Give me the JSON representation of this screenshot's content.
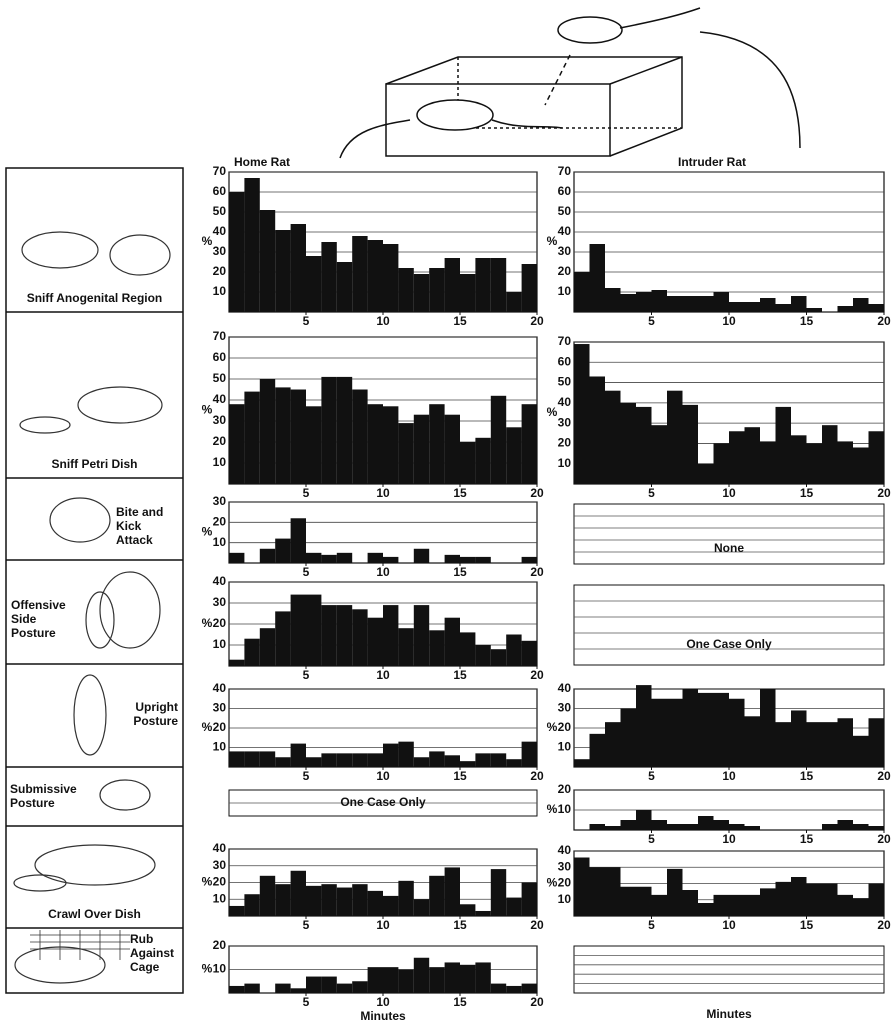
{
  "column_titles": [
    "Home Rat",
    "Intruder Rat"
  ],
  "behaviors": [
    "Sniff Anogenital Region",
    "Sniff Petri Dish",
    "Bite and Kick Attack",
    "Offensive Side Posture",
    "Upright Posture",
    "Submissive Posture",
    "Crawl Over Dish",
    "Rub Against Cage"
  ],
  "chart_data": [
    {
      "type": "histogram",
      "ylabel": "%",
      "color": "#111111",
      "grid": true,
      "bins": [
        0,
        1,
        2,
        3,
        4,
        5,
        6,
        7,
        8,
        9,
        10,
        11,
        12,
        13,
        14,
        15,
        16,
        17,
        18,
        19,
        20
      ],
      "values": [
        60,
        67,
        51,
        41,
        44,
        28,
        35,
        25,
        38,
        36,
        34,
        22,
        19,
        22,
        27,
        19,
        27,
        27,
        10,
        24
      ],
      "xlim": [
        0,
        20
      ],
      "xticks": [
        5,
        10,
        15,
        20
      ],
      "ylim": [
        0,
        70
      ],
      "yticks": [
        10,
        20,
        30,
        40,
        50,
        60,
        70
      ]
    },
    {
      "type": "histogram",
      "ylabel": "%",
      "color": "#111111",
      "grid": true,
      "bins": [
        0,
        1,
        2,
        3,
        4,
        5,
        6,
        7,
        8,
        9,
        10,
        11,
        12,
        13,
        14,
        15,
        16,
        17,
        18,
        19,
        20
      ],
      "values": [
        20,
        34,
        12,
        9,
        10,
        11,
        8,
        8,
        8,
        10,
        5,
        5,
        7,
        4,
        8,
        2,
        0,
        3,
        7,
        4
      ],
      "xlim": [
        0,
        20
      ],
      "xticks": [
        5,
        10,
        15,
        20
      ],
      "ylim": [
        0,
        70
      ],
      "yticks": [
        10,
        20,
        30,
        40,
        50,
        60,
        70
      ]
    },
    {
      "type": "histogram",
      "ylabel": "%",
      "color": "#111111",
      "grid": true,
      "bins": [
        0,
        1,
        2,
        3,
        4,
        5,
        6,
        7,
        8,
        9,
        10,
        11,
        12,
        13,
        14,
        15,
        16,
        17,
        18,
        19,
        20
      ],
      "values": [
        38,
        44,
        50,
        46,
        45,
        37,
        51,
        51,
        45,
        38,
        37,
        29,
        33,
        38,
        33,
        20,
        22,
        42,
        27,
        38
      ],
      "xlim": [
        0,
        20
      ],
      "xticks": [
        5,
        10,
        15,
        20
      ],
      "ylim": [
        0,
        70
      ],
      "yticks": [
        10,
        20,
        30,
        40,
        50,
        60,
        70
      ]
    },
    {
      "type": "histogram",
      "ylabel": "%",
      "color": "#111111",
      "grid": true,
      "bins": [
        0,
        1,
        2,
        3,
        4,
        5,
        6,
        7,
        8,
        9,
        10,
        11,
        12,
        13,
        14,
        15,
        16,
        17,
        18,
        19,
        20
      ],
      "values": [
        69,
        53,
        46,
        40,
        38,
        29,
        46,
        39,
        10,
        20,
        26,
        28,
        21,
        38,
        24,
        20,
        29,
        21,
        18,
        26
      ],
      "xlim": [
        0,
        20
      ],
      "xticks": [
        5,
        10,
        15,
        20
      ],
      "ylim": [
        0,
        70
      ],
      "yticks": [
        10,
        20,
        30,
        40,
        50,
        60,
        70
      ]
    },
    {
      "type": "histogram",
      "ylabel": "%",
      "color": "#111111",
      "grid": true,
      "bins": [
        0,
        1,
        2,
        3,
        4,
        5,
        6,
        7,
        8,
        9,
        10,
        11,
        12,
        13,
        14,
        15,
        16,
        17,
        18,
        19,
        20
      ],
      "values": [
        5,
        0,
        7,
        12,
        22,
        5,
        4,
        5,
        0,
        5,
        3,
        0,
        7,
        0,
        4,
        3,
        3,
        0,
        0,
        3
      ],
      "xlim": [
        0,
        20
      ],
      "xticks": [
        5,
        10,
        15,
        20
      ],
      "ylim": [
        0,
        30
      ],
      "yticks": [
        10,
        20,
        30
      ]
    },
    {
      "type": "histogram",
      "annotation": "None"
    },
    {
      "type": "histogram",
      "ylabel": "%",
      "color": "#111111",
      "grid": true,
      "bins": [
        0,
        1,
        2,
        3,
        4,
        5,
        6,
        7,
        8,
        9,
        10,
        11,
        12,
        13,
        14,
        15,
        16,
        17,
        18,
        19,
        20
      ],
      "values": [
        3,
        13,
        18,
        26,
        34,
        34,
        29,
        29,
        27,
        23,
        29,
        18,
        29,
        17,
        23,
        16,
        10,
        8,
        15,
        12
      ],
      "xlim": [
        0,
        20
      ],
      "xticks": [
        5,
        10,
        15,
        20
      ],
      "ylim": [
        0,
        40
      ],
      "yticks": [
        10,
        20,
        30,
        40
      ]
    },
    {
      "type": "histogram",
      "annotation": "One Case Only"
    },
    {
      "type": "histogram",
      "ylabel": "%",
      "color": "#111111",
      "grid": true,
      "bins": [
        0,
        1,
        2,
        3,
        4,
        5,
        6,
        7,
        8,
        9,
        10,
        11,
        12,
        13,
        14,
        15,
        16,
        17,
        18,
        19,
        20
      ],
      "values": [
        8,
        8,
        8,
        5,
        12,
        5,
        7,
        7,
        7,
        7,
        12,
        13,
        5,
        8,
        6,
        3,
        7,
        7,
        4,
        13
      ],
      "xlim": [
        0,
        20
      ],
      "xticks": [
        5,
        10,
        15,
        20
      ],
      "ylim": [
        0,
        40
      ],
      "yticks": [
        10,
        20,
        30,
        40
      ]
    },
    {
      "type": "histogram",
      "ylabel": "%",
      "color": "#111111",
      "grid": true,
      "bins": [
        0,
        1,
        2,
        3,
        4,
        5,
        6,
        7,
        8,
        9,
        10,
        11,
        12,
        13,
        14,
        15,
        16,
        17,
        18,
        19,
        20
      ],
      "values": [
        4,
        17,
        23,
        30,
        42,
        35,
        35,
        40,
        38,
        38,
        35,
        26,
        40,
        23,
        29,
        23,
        23,
        25,
        16,
        25
      ],
      "xlim": [
        0,
        20
      ],
      "xticks": [
        5,
        10,
        15,
        20
      ],
      "ylim": [
        0,
        40
      ],
      "yticks": [
        10,
        20,
        30,
        40
      ]
    },
    {
      "type": "histogram",
      "annotation": "One Case Only"
    },
    {
      "type": "histogram",
      "ylabel": "%",
      "color": "#111111",
      "grid": true,
      "bins": [
        0,
        1,
        2,
        3,
        4,
        5,
        6,
        7,
        8,
        9,
        10,
        11,
        12,
        13,
        14,
        15,
        16,
        17,
        18,
        19,
        20
      ],
      "values": [
        0,
        3,
        2,
        5,
        10,
        5,
        3,
        3,
        7,
        5,
        3,
        2,
        0,
        0,
        0,
        0,
        3,
        5,
        3,
        2
      ],
      "xlim": [
        0,
        20
      ],
      "xticks": [
        5,
        10,
        15,
        20
      ],
      "ylim": [
        0,
        20
      ],
      "yticks": [
        10,
        20
      ]
    },
    {
      "type": "histogram",
      "ylabel": "%",
      "color": "#111111",
      "grid": true,
      "bins": [
        0,
        1,
        2,
        3,
        4,
        5,
        6,
        7,
        8,
        9,
        10,
        11,
        12,
        13,
        14,
        15,
        16,
        17,
        18,
        19,
        20
      ],
      "values": [
        6,
        13,
        24,
        19,
        27,
        18,
        19,
        17,
        19,
        15,
        12,
        21,
        10,
        24,
        29,
        7,
        3,
        28,
        11,
        20
      ],
      "xlim": [
        0,
        20
      ],
      "xticks": [
        5,
        10,
        15,
        20
      ],
      "ylim": [
        0,
        40
      ],
      "yticks": [
        10,
        20,
        30,
        40
      ]
    },
    {
      "type": "histogram",
      "ylabel": "%",
      "color": "#111111",
      "grid": true,
      "bins": [
        0,
        1,
        2,
        3,
        4,
        5,
        6,
        7,
        8,
        9,
        10,
        11,
        12,
        13,
        14,
        15,
        16,
        17,
        18,
        19,
        20
      ],
      "values": [
        36,
        30,
        30,
        18,
        18,
        13,
        29,
        16,
        8,
        13,
        13,
        13,
        17,
        21,
        24,
        20,
        20,
        13,
        11,
        20
      ],
      "xlim": [
        0,
        20
      ],
      "xticks": [
        5,
        10,
        15,
        20
      ],
      "ylim": [
        0,
        40
      ],
      "yticks": [
        10,
        20,
        30,
        40
      ]
    },
    {
      "type": "histogram",
      "ylabel": "%",
      "color": "#111111",
      "grid": true,
      "bins": [
        0,
        1,
        2,
        3,
        4,
        5,
        6,
        7,
        8,
        9,
        10,
        11,
        12,
        13,
        14,
        15,
        16,
        17,
        18,
        19,
        20
      ],
      "values": [
        3,
        4,
        0,
        4,
        2,
        7,
        7,
        4,
        5,
        11,
        11,
        10,
        15,
        11,
        13,
        12,
        13,
        4,
        3,
        4
      ],
      "xlim": [
        0,
        20
      ],
      "xticks": [
        5,
        10,
        15,
        20
      ],
      "ylim": [
        0,
        20
      ],
      "yticks": [
        10,
        20
      ],
      "xlabel": "Minutes"
    },
    {
      "type": "histogram",
      "xlabel": "Minutes"
    }
  ]
}
